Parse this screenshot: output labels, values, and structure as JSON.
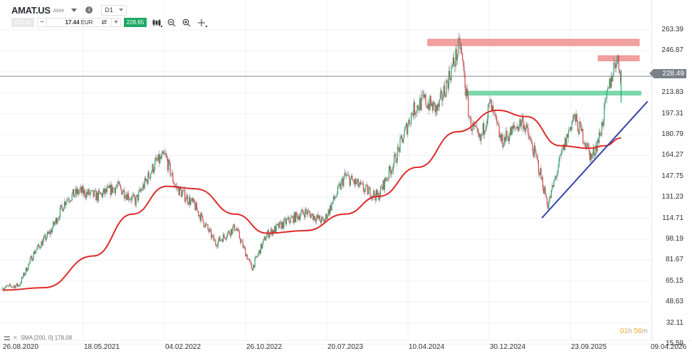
{
  "header": {
    "symbol": "AMAT.US",
    "asset_type": "Aktie",
    "info_icon": "i",
    "timeframe": "D1",
    "bid_price": "228.49",
    "quantity_value": "17.44",
    "quantity_currency": "EUR",
    "minus_label": "−",
    "plus_label": "+",
    "swap_icon": "⇄",
    "ask_price": "228.65",
    "tools": [
      "candlestick-type-icon",
      "zoom-out-icon",
      "zoom-in-icon",
      "crosshair-icon"
    ]
  },
  "legend": {
    "indicator": "SMA [200, 0] 178.08"
  },
  "countdown": {
    "hours": "01",
    "h": "h",
    "minutes": "56",
    "m": "m"
  },
  "current_price_tag": "228.49",
  "colors": {
    "up": "#26a96c",
    "down": "#e0434a",
    "sma": "#e02a2a",
    "trendline": "#3344aa",
    "resistance_zone": "#ef8a8a",
    "support_zone": "#5fcf98",
    "price_line": "#9aa0a6",
    "grid": "#f0f0f0"
  },
  "chart_data": {
    "type": "candlestick",
    "title": "AMAT.US Aktie D1",
    "xlabel": "",
    "ylabel": "",
    "ylim": [
      15.59,
      263.39
    ],
    "y_ticks": [
      "263.39",
      "246.87",
      "228.49",
      "213.83",
      "197.31",
      "180.79",
      "164.27",
      "147.75",
      "131.23",
      "114.71",
      "98.19",
      "81.67",
      "65.15",
      "48.63",
      "32.11",
      "15.59"
    ],
    "x_ticks": [
      "26.08.2020",
      "18.05.2021",
      "04.02.2022",
      "26.10.2022",
      "20.07.2023",
      "10.04.2024",
      "30.12.2024",
      "23.09.2025",
      "09.04.2026"
    ],
    "price_path": [
      {
        "date": "2020-08-26",
        "close": 60
      },
      {
        "date": "2020-10-15",
        "close": 62
      },
      {
        "date": "2020-12-01",
        "close": 88
      },
      {
        "date": "2021-01-20",
        "close": 104
      },
      {
        "date": "2021-03-10",
        "close": 130
      },
      {
        "date": "2021-04-20",
        "close": 136
      },
      {
        "date": "2021-06-15",
        "close": 132
      },
      {
        "date": "2021-08-15",
        "close": 140
      },
      {
        "date": "2021-10-10",
        "close": 128
      },
      {
        "date": "2021-12-10",
        "close": 158
      },
      {
        "date": "2022-01-10",
        "close": 164
      },
      {
        "date": "2022-02-10",
        "close": 140
      },
      {
        "date": "2022-04-10",
        "close": 125
      },
      {
        "date": "2022-06-15",
        "close": 95
      },
      {
        "date": "2022-08-15",
        "close": 108
      },
      {
        "date": "2022-10-05",
        "close": 75
      },
      {
        "date": "2022-11-20",
        "close": 102
      },
      {
        "date": "2023-01-20",
        "close": 112
      },
      {
        "date": "2023-03-20",
        "close": 120
      },
      {
        "date": "2023-05-15",
        "close": 112
      },
      {
        "date": "2023-07-20",
        "close": 148
      },
      {
        "date": "2023-09-15",
        "close": 138
      },
      {
        "date": "2023-10-30",
        "close": 132
      },
      {
        "date": "2023-12-20",
        "close": 160
      },
      {
        "date": "2024-02-15",
        "close": 200
      },
      {
        "date": "2024-03-20",
        "close": 208
      },
      {
        "date": "2024-05-01",
        "close": 200
      },
      {
        "date": "2024-07-10",
        "close": 252
      },
      {
        "date": "2024-08-10",
        "close": 190
      },
      {
        "date": "2024-09-10",
        "close": 175
      },
      {
        "date": "2024-10-10",
        "close": 205
      },
      {
        "date": "2024-11-15",
        "close": 175
      },
      {
        "date": "2025-01-20",
        "close": 192
      },
      {
        "date": "2025-03-05",
        "close": 160
      },
      {
        "date": "2025-04-08",
        "close": 125
      },
      {
        "date": "2025-05-20",
        "close": 165
      },
      {
        "date": "2025-06-25",
        "close": 195
      },
      {
        "date": "2025-07-25",
        "close": 180
      },
      {
        "date": "2025-08-20",
        "close": 162
      },
      {
        "date": "2025-09-15",
        "close": 180
      },
      {
        "date": "2025-10-15",
        "close": 220
      },
      {
        "date": "2025-11-05",
        "close": 242
      },
      {
        "date": "2025-11-20",
        "close": 228.49
      }
    ],
    "sma_200": {
      "name": "SMA [200, 0]",
      "last_value": 178.08,
      "points": [
        {
          "date": "2020-08-26",
          "value": 58
        },
        {
          "date": "2021-01-01",
          "value": 60
        },
        {
          "date": "2021-06-01",
          "value": 85
        },
        {
          "date": "2021-10-01",
          "value": 118
        },
        {
          "date": "2022-01-15",
          "value": 140
        },
        {
          "date": "2022-04-15",
          "value": 138
        },
        {
          "date": "2022-08-15",
          "value": 118
        },
        {
          "date": "2022-11-20",
          "value": 103
        },
        {
          "date": "2023-03-20",
          "value": 105
        },
        {
          "date": "2023-07-20",
          "value": 118
        },
        {
          "date": "2023-11-01",
          "value": 132
        },
        {
          "date": "2024-03-01",
          "value": 155
        },
        {
          "date": "2024-07-01",
          "value": 183
        },
        {
          "date": "2024-11-01",
          "value": 200
        },
        {
          "date": "2025-02-01",
          "value": 195
        },
        {
          "date": "2025-05-15",
          "value": 172
        },
        {
          "date": "2025-08-15",
          "value": 170
        },
        {
          "date": "2025-10-01",
          "value": 172
        },
        {
          "date": "2025-11-20",
          "value": 178.08
        }
      ]
    },
    "annotations": [
      {
        "type": "zone",
        "label": "resistance",
        "from": "2024-04-01",
        "to": "2026-01-15",
        "y_top": 256,
        "y_bottom": 251
      },
      {
        "type": "zone",
        "label": "resistance",
        "from": "2025-09-10",
        "to": "2026-01-15",
        "y_top": 243,
        "y_bottom": 239
      },
      {
        "type": "zone",
        "label": "support",
        "from": "2024-07-25",
        "to": "2026-01-20",
        "y_top": 215,
        "y_bottom": 212
      },
      {
        "type": "trendline",
        "label": "ascending support",
        "from": {
          "date": "2025-03-20",
          "value": 115
        },
        "to": {
          "date": "2026-02-10",
          "value": 207
        }
      },
      {
        "type": "hline",
        "label": "current price",
        "value": 228.49
      }
    ]
  }
}
